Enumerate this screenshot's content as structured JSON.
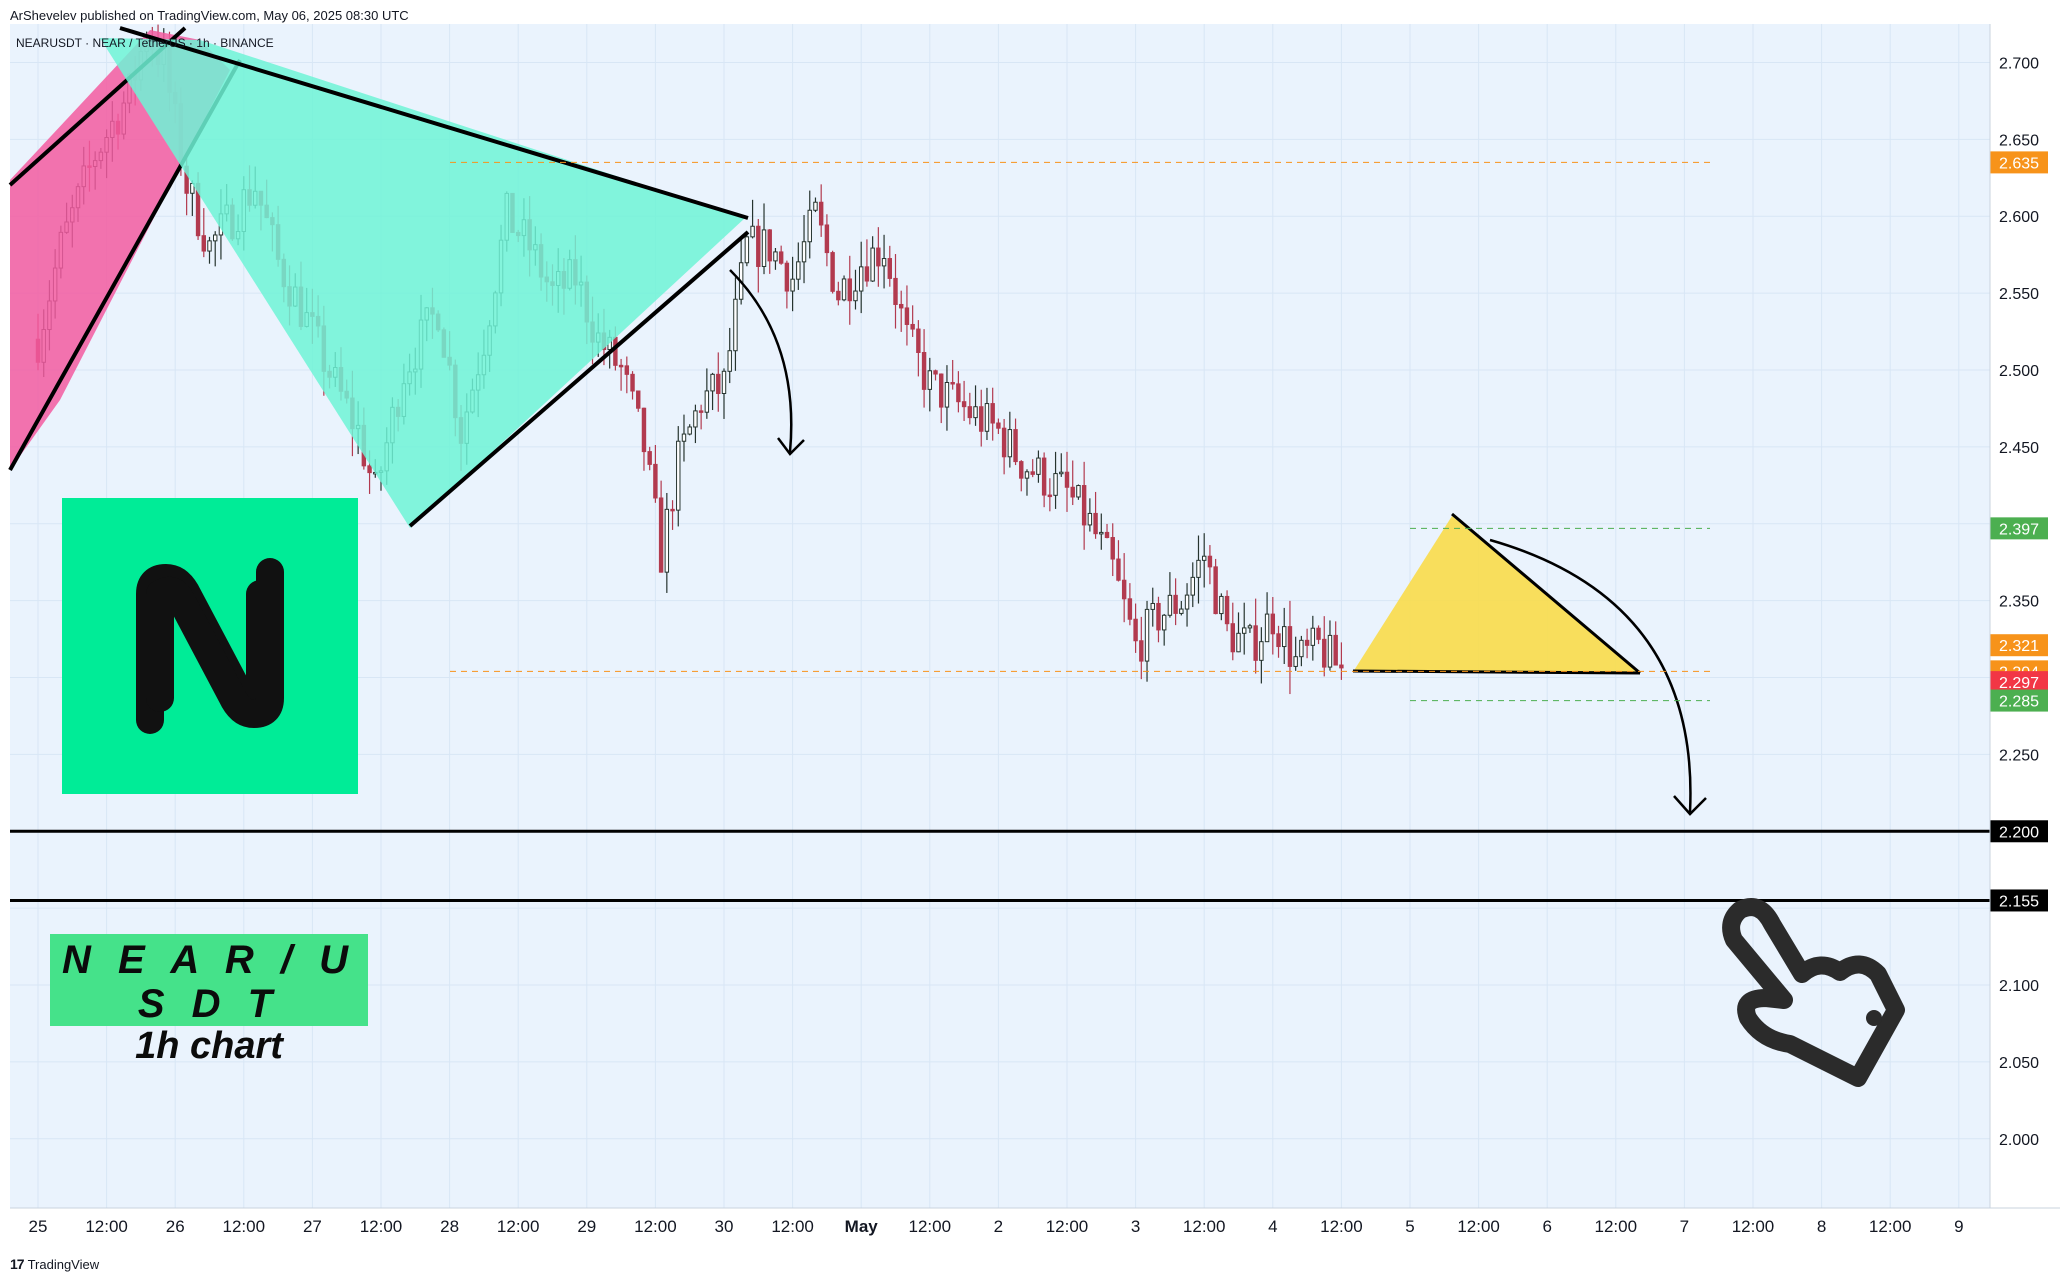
{
  "header": {
    "published_by": "ArShevelev published on TradingView.com, May 06, 2025 08:30 UTC",
    "symbol_line": "NEARUSDT · NEAR / TetherUS · 1h · BINANCE"
  },
  "caption": {
    "line1": "N E A R / U S D T",
    "line2": "1h chart"
  },
  "footer": {
    "brand_mark": "17",
    "brand": "TradingView"
  },
  "colors": {
    "background": "#eaf3fd",
    "candle_up": "#26342f",
    "candle_down": "#b23a4f",
    "bull_wedge": "#f35ba0",
    "triangle_fill": "#6ef3d6",
    "small_triangle_fill": "#f9dc4a",
    "logo_bg": "#00ec97",
    "caption_bg": "#45e28a",
    "level_orange": "#f7931a",
    "level_green": "#4caf50",
    "level_red": "#f23645",
    "level_black": "#000000"
  },
  "icons": [
    "near-logo-icon",
    "pointing-hand-icon",
    "tradingview-logo-icon"
  ],
  "chart_data": {
    "type": "candlestick",
    "title": "",
    "xlabel": "",
    "ylabel": "",
    "ylim": [
      1.955,
      2.725
    ],
    "x_ticks": [
      "25",
      "12:00",
      "26",
      "12:00",
      "27",
      "12:00",
      "28",
      "12:00",
      "29",
      "12:00",
      "30",
      "12:00",
      "May",
      "12:00",
      "2",
      "12:00",
      "3",
      "12:00",
      "4",
      "12:00",
      "5",
      "12:00",
      "6",
      "12:00",
      "7",
      "12:00",
      "8",
      "12:00",
      "9"
    ],
    "y_ticks": [
      2.7,
      2.65,
      2.6,
      2.55,
      2.5,
      2.45,
      2.35,
      2.25,
      2.1,
      2.05,
      2.0
    ],
    "price_path": [
      [
        0,
        2.52
      ],
      [
        4,
        2.58
      ],
      [
        10,
        2.64
      ],
      [
        16,
        2.68
      ],
      [
        19,
        2.72
      ],
      [
        22,
        2.7
      ],
      [
        26,
        2.62
      ],
      [
        30,
        2.58
      ],
      [
        34,
        2.6
      ],
      [
        38,
        2.62
      ],
      [
        42,
        2.57
      ],
      [
        46,
        2.54
      ],
      [
        52,
        2.49
      ],
      [
        56,
        2.46
      ],
      [
        59,
        2.42
      ],
      [
        64,
        2.5
      ],
      [
        70,
        2.54
      ],
      [
        74,
        2.46
      ],
      [
        78,
        2.52
      ],
      [
        82,
        2.6
      ],
      [
        86,
        2.58
      ],
      [
        90,
        2.55
      ],
      [
        94,
        2.56
      ],
      [
        98,
        2.52
      ],
      [
        102,
        2.5
      ],
      [
        106,
        2.45
      ],
      [
        109,
        2.38
      ],
      [
        112,
        2.44
      ],
      [
        116,
        2.48
      ],
      [
        120,
        2.49
      ],
      [
        124,
        2.58
      ],
      [
        128,
        2.58
      ],
      [
        132,
        2.56
      ],
      [
        136,
        2.6
      ],
      [
        140,
        2.55
      ],
      [
        144,
        2.57
      ],
      [
        148,
        2.58
      ],
      [
        152,
        2.52
      ],
      [
        156,
        2.49
      ],
      [
        160,
        2.48
      ],
      [
        164,
        2.47
      ],
      [
        168,
        2.46
      ],
      [
        172,
        2.44
      ],
      [
        176,
        2.43
      ],
      [
        180,
        2.42
      ],
      [
        184,
        2.4
      ],
      [
        188,
        2.37
      ],
      [
        192,
        2.32
      ],
      [
        196,
        2.34
      ],
      [
        200,
        2.35
      ],
      [
        204,
        2.38
      ],
      [
        208,
        2.33
      ],
      [
        212,
        2.32
      ],
      [
        216,
        2.34
      ],
      [
        220,
        2.31
      ],
      [
        224,
        2.32
      ],
      [
        228,
        2.305
      ]
    ],
    "drawings": {
      "bull_wedge": "rising channel (pink) ending near 2.72",
      "symmetrical_triangle": "teal triangle from 2.72 down to 2.42",
      "descending_triangle": "yellow triangle with base near 2.304"
    },
    "levels": [
      {
        "price": 2.635,
        "label": "2.635",
        "style": "orange-dashed"
      },
      {
        "price": 2.397,
        "label": "2.397",
        "style": "green-dashed"
      },
      {
        "price": 2.321,
        "label": "2.321",
        "style": "orange"
      },
      {
        "price": 2.304,
        "label": "2.304",
        "style": "orange-dashed"
      },
      {
        "price": 2.297,
        "label": "2.297",
        "style": "red"
      },
      {
        "price": 2.285,
        "label": "2.285",
        "style": "green-dashed"
      },
      {
        "price": 2.2,
        "label": "2.200",
        "style": "black-solid"
      },
      {
        "price": 2.155,
        "label": "2.155",
        "style": "black-solid"
      }
    ]
  }
}
